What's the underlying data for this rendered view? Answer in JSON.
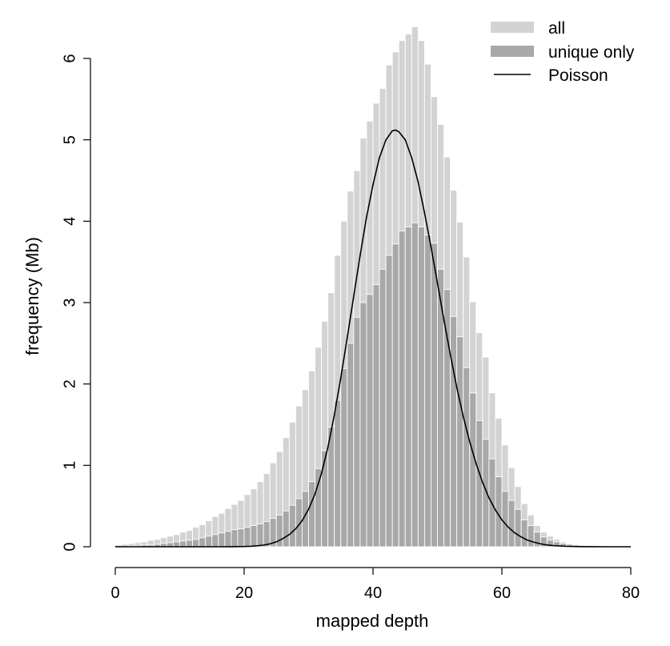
{
  "chart_data": {
    "type": "bar",
    "xlabel": "mapped depth",
    "ylabel": "frequency (Mb)",
    "xlim": [
      0,
      80
    ],
    "ylim": [
      0,
      6
    ],
    "x_ticks": [
      "0",
      "20",
      "40",
      "60",
      "80"
    ],
    "y_ticks": [
      "0",
      "1",
      "2",
      "3",
      "4",
      "5",
      "6"
    ],
    "grid": false,
    "legend_position": "top-right",
    "x": [
      0,
      1,
      2,
      3,
      4,
      5,
      6,
      7,
      8,
      9,
      10,
      11,
      12,
      13,
      14,
      15,
      16,
      17,
      18,
      19,
      20,
      21,
      22,
      23,
      24,
      25,
      26,
      27,
      28,
      29,
      30,
      31,
      32,
      33,
      34,
      35,
      36,
      37,
      38,
      39,
      40,
      41,
      42,
      43,
      44,
      45,
      46,
      47,
      48,
      49,
      50,
      51,
      52,
      53,
      54,
      55,
      56,
      57,
      58,
      59,
      60,
      61,
      62,
      63,
      64,
      65,
      66,
      67,
      68,
      69,
      70,
      71,
      72,
      73,
      74,
      75,
      76,
      77,
      78,
      79
    ],
    "series": [
      {
        "name": "all",
        "kind": "bar",
        "color": "#d3d3d3",
        "values": [
          0.02,
          0.03,
          0.04,
          0.05,
          0.06,
          0.08,
          0.09,
          0.11,
          0.13,
          0.15,
          0.18,
          0.2,
          0.24,
          0.27,
          0.32,
          0.37,
          0.41,
          0.47,
          0.52,
          0.57,
          0.64,
          0.71,
          0.8,
          0.9,
          1.03,
          1.17,
          1.34,
          1.53,
          1.73,
          1.93,
          2.16,
          2.45,
          2.77,
          3.12,
          3.58,
          4.0,
          4.37,
          4.62,
          5.02,
          5.23,
          5.45,
          5.63,
          5.92,
          6.08,
          6.22,
          6.3,
          6.39,
          6.22,
          5.93,
          5.53,
          5.19,
          4.79,
          4.38,
          3.99,
          3.56,
          3.01,
          2.63,
          2.33,
          1.89,
          1.58,
          1.25,
          0.97,
          0.74,
          0.53,
          0.39,
          0.26,
          0.18,
          0.13,
          0.09,
          0.06,
          0.04,
          0.03,
          0.02,
          0.01,
          0.01,
          0.0,
          0.0,
          0.0,
          0.0,
          0.0
        ]
      },
      {
        "name": "unique only",
        "kind": "bar",
        "color": "#a8a8a8",
        "values": [
          0.0,
          0.0,
          0.01,
          0.01,
          0.02,
          0.02,
          0.03,
          0.04,
          0.05,
          0.06,
          0.07,
          0.08,
          0.09,
          0.11,
          0.13,
          0.15,
          0.17,
          0.19,
          0.21,
          0.22,
          0.24,
          0.26,
          0.28,
          0.31,
          0.35,
          0.39,
          0.44,
          0.51,
          0.59,
          0.68,
          0.8,
          0.96,
          1.18,
          1.47,
          1.8,
          2.19,
          2.5,
          2.82,
          3.0,
          3.1,
          3.22,
          3.41,
          3.58,
          3.72,
          3.88,
          3.93,
          3.98,
          3.93,
          3.83,
          3.73,
          3.41,
          3.16,
          2.83,
          2.58,
          2.2,
          1.89,
          1.55,
          1.32,
          1.08,
          0.86,
          0.68,
          0.57,
          0.46,
          0.33,
          0.26,
          0.18,
          0.12,
          0.08,
          0.06,
          0.04,
          0.03,
          0.02,
          0.01,
          0.01,
          0.0,
          0.0,
          0.0,
          0.0,
          0.0,
          0.0
        ]
      },
      {
        "name": "Poisson",
        "kind": "line",
        "color": "#000000",
        "curve_x": [
          0,
          4,
          8,
          12,
          16,
          18,
          20,
          21,
          22,
          23,
          24,
          25,
          26,
          27,
          28,
          29,
          30,
          31,
          32,
          33,
          34,
          35,
          36,
          37,
          38,
          39,
          40,
          41,
          42,
          43,
          43.5,
          44,
          45,
          46,
          47,
          48,
          49,
          50,
          51,
          52,
          53,
          54,
          55,
          56,
          57,
          58,
          59,
          60,
          61,
          62,
          63,
          64,
          65,
          66,
          67,
          68,
          70,
          72,
          74,
          76,
          78,
          80
        ],
        "curve_y": [
          0,
          0,
          0,
          0,
          0,
          0.001,
          0.003,
          0.006,
          0.012,
          0.02,
          0.035,
          0.06,
          0.1,
          0.15,
          0.22,
          0.32,
          0.46,
          0.65,
          0.9,
          1.22,
          1.62,
          2.08,
          2.57,
          3.08,
          3.58,
          4.05,
          4.45,
          4.78,
          5.0,
          5.11,
          5.12,
          5.1,
          5.0,
          4.78,
          4.48,
          4.1,
          3.68,
          3.24,
          2.79,
          2.36,
          1.96,
          1.6,
          1.29,
          1.02,
          0.79,
          0.6,
          0.45,
          0.33,
          0.24,
          0.17,
          0.12,
          0.08,
          0.055,
          0.035,
          0.022,
          0.014,
          0.005,
          0.002,
          0.0005,
          0,
          0,
          0
        ]
      }
    ]
  }
}
